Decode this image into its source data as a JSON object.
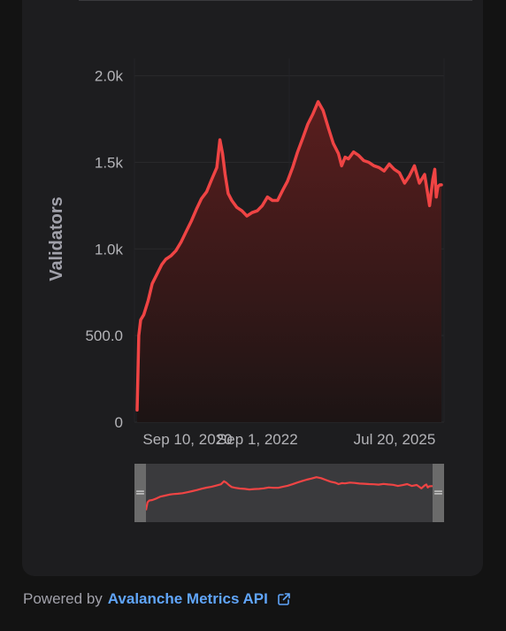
{
  "chart_data": {
    "type": "area",
    "ylabel": "Validators",
    "xlabel": "",
    "ylim": [
      0,
      2100
    ],
    "yticks": [
      0,
      500,
      1000,
      1500,
      2000
    ],
    "ytick_labels": [
      "0",
      "500.0",
      "1.0k",
      "1.5k",
      "2.0k"
    ],
    "xtick_labels": [
      "Sep 10, 2020",
      "Sep 1, 2022",
      "Jul 20, 2025"
    ],
    "x": [
      "2020-09-10",
      "2020-09-20",
      "2020-10-01",
      "2020-10-20",
      "2020-11-15",
      "2020-12-10",
      "2021-01-10",
      "2021-02-05",
      "2021-03-01",
      "2021-04-01",
      "2021-05-01",
      "2021-06-01",
      "2021-07-01",
      "2021-08-01",
      "2021-09-01",
      "2021-10-01",
      "2021-11-01",
      "2021-12-01",
      "2022-01-01",
      "2022-01-20",
      "2022-02-05",
      "2022-02-20",
      "2022-03-10",
      "2022-04-01",
      "2022-05-01",
      "2022-06-01",
      "2022-07-01",
      "2022-08-01",
      "2022-09-01",
      "2022-10-01",
      "2022-11-01",
      "2022-12-01",
      "2023-01-01",
      "2023-02-01",
      "2023-03-01",
      "2023-04-01",
      "2023-05-01",
      "2023-06-01",
      "2023-07-01",
      "2023-08-01",
      "2023-09-01",
      "2023-10-01",
      "2023-11-01",
      "2023-12-01",
      "2024-01-01",
      "2024-01-20",
      "2024-02-10",
      "2024-03-01",
      "2024-04-01",
      "2024-05-01",
      "2024-06-01",
      "2024-07-01",
      "2024-08-01",
      "2024-09-01",
      "2024-10-01",
      "2024-11-01",
      "2024-12-01",
      "2025-01-01",
      "2025-02-01",
      "2025-03-01",
      "2025-04-01",
      "2025-05-01",
      "2025-06-01",
      "2025-07-01",
      "2025-07-20",
      "2025-08-01",
      "2025-08-10",
      "2025-08-20",
      "2025-09-01",
      "2025-09-10"
    ],
    "series": [
      {
        "values": [
          70,
          500,
          590,
          620,
          700,
          800,
          860,
          910,
          940,
          960,
          990,
          1040,
          1100,
          1160,
          1230,
          1290,
          1330,
          1400,
          1470,
          1630,
          1550,
          1430,
          1320,
          1280,
          1240,
          1220,
          1190,
          1210,
          1220,
          1250,
          1300,
          1280,
          1280,
          1340,
          1390,
          1470,
          1560,
          1640,
          1720,
          1780,
          1850,
          1800,
          1700,
          1610,
          1550,
          1480,
          1530,
          1520,
          1560,
          1540,
          1510,
          1500,
          1480,
          1470,
          1450,
          1490,
          1460,
          1440,
          1380,
          1420,
          1480,
          1380,
          1430,
          1250,
          1400,
          1460,
          1300,
          1360,
          1370,
          1370
        ]
      }
    ],
    "grid": true,
    "line_color": "#ef4444",
    "fill_color_top": "#5a1e1e",
    "fill_color_bottom": "#1c1414"
  },
  "navigator": {
    "left_handle_glyph": "=",
    "right_handle_glyph": "="
  },
  "footer": {
    "powered_by": "Powered by",
    "link_text": "Avalanche Metrics API",
    "link_icon": "external-link-icon"
  }
}
